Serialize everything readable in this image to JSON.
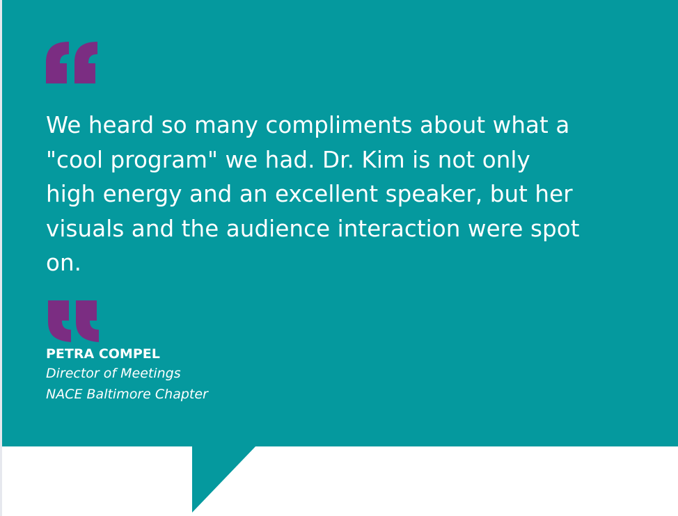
{
  "colors": {
    "background": "#05999e",
    "quote_marks": "#7b2d82",
    "text": "#ffffff"
  },
  "icons": {
    "open_quote": "open-quote-icon",
    "close_quote": "close-quote-icon"
  },
  "testimonial": {
    "lines": [
      "We heard so many compliments about what a",
      "\"cool program\" we had. Dr. Kim is not only",
      "high energy and an excellent speaker, but her",
      "visuals and the audience interaction were spot",
      "on."
    ],
    "author_name": "PETRA COMPEL",
    "author_title": "Director of Meetings",
    "author_org": "NACE Baltimore Chapter"
  }
}
